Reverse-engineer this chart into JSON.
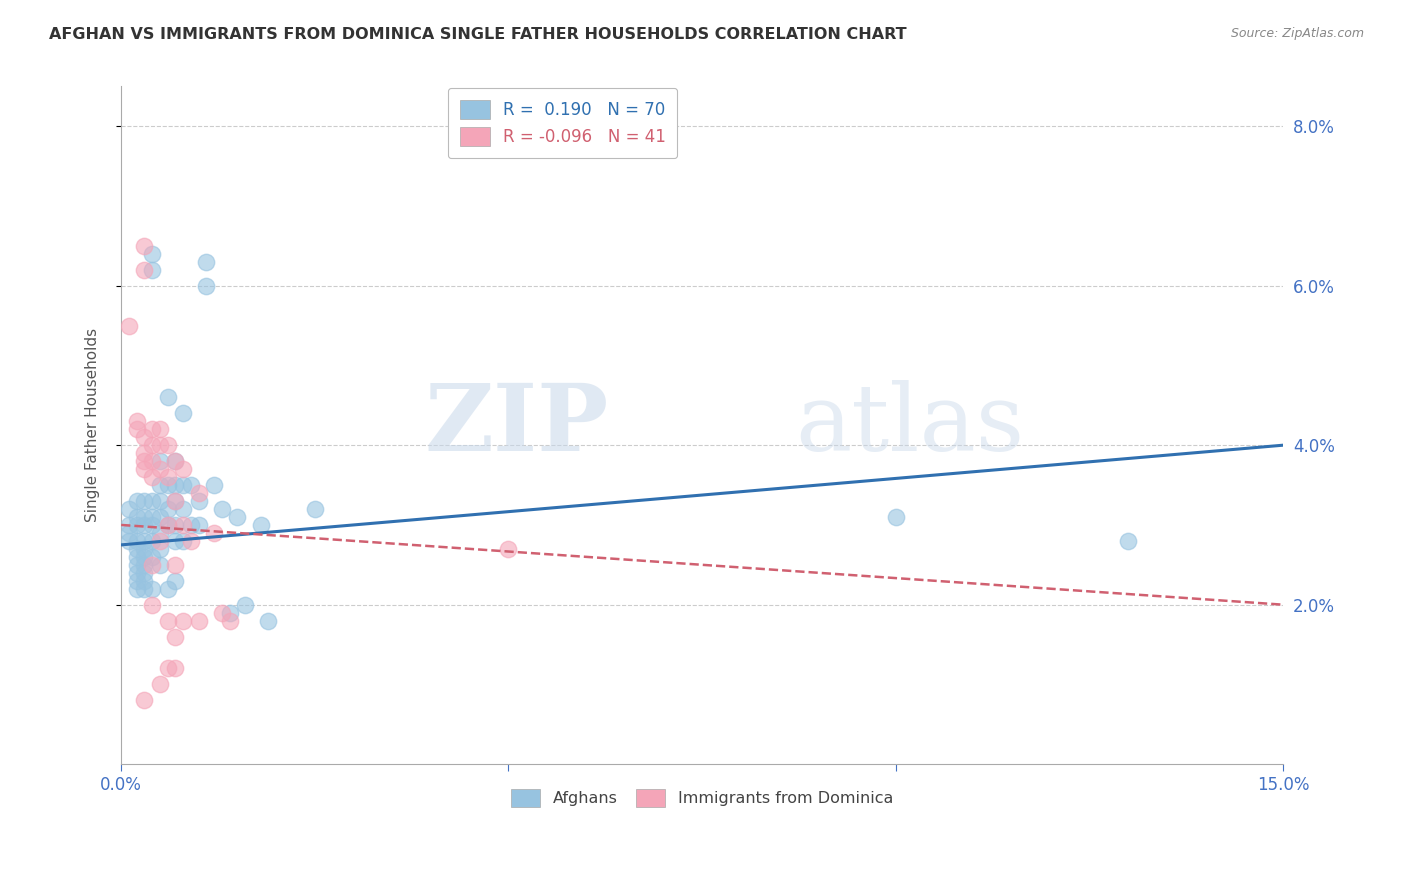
{
  "title": "AFGHAN VS IMMIGRANTS FROM DOMINICA SINGLE FATHER HOUSEHOLDS CORRELATION CHART",
  "source": "Source: ZipAtlas.com",
  "ylabel": "Single Father Households",
  "xlim": [
    0.0,
    0.15
  ],
  "ylim": [
    0.0,
    0.085
  ],
  "yticks": [
    0.02,
    0.04,
    0.06,
    0.08
  ],
  "ytick_labels": [
    "2.0%",
    "4.0%",
    "6.0%",
    "8.0%"
  ],
  "xticks": [
    0.0,
    0.05,
    0.1,
    0.15
  ],
  "xtick_labels": [
    "0.0%",
    "",
    "",
    "15.0%"
  ],
  "watermark_zip": "ZIP",
  "watermark_atlas": "atlas",
  "afghan_color": "#97c3e0",
  "dominica_color": "#f4a5b8",
  "afghan_line_color": "#3070b0",
  "dominica_line_color": "#d06070",
  "background_color": "#ffffff",
  "grid_color": "#cccccc",
  "tick_color": "#4472c4",
  "title_color": "#333333",
  "source_color": "#888888",
  "afghan_R": 0.19,
  "afghan_N": 70,
  "dominica_R": -0.096,
  "dominica_N": 41,
  "afghan_line_x0": 0.0,
  "afghan_line_y0": 0.0275,
  "afghan_line_x1": 0.15,
  "afghan_line_y1": 0.04,
  "dominica_line_x0": 0.0,
  "dominica_line_y0": 0.03,
  "dominica_line_x1": 0.15,
  "dominica_line_y1": 0.02,
  "afghan_points": [
    [
      0.001,
      0.032
    ],
    [
      0.001,
      0.03
    ],
    [
      0.001,
      0.029
    ],
    [
      0.001,
      0.028
    ],
    [
      0.002,
      0.033
    ],
    [
      0.002,
      0.031
    ],
    [
      0.002,
      0.03
    ],
    [
      0.002,
      0.028
    ],
    [
      0.002,
      0.027
    ],
    [
      0.002,
      0.026
    ],
    [
      0.002,
      0.025
    ],
    [
      0.002,
      0.024
    ],
    [
      0.002,
      0.023
    ],
    [
      0.002,
      0.022
    ],
    [
      0.003,
      0.033
    ],
    [
      0.003,
      0.031
    ],
    [
      0.003,
      0.03
    ],
    [
      0.003,
      0.028
    ],
    [
      0.003,
      0.027
    ],
    [
      0.003,
      0.026
    ],
    [
      0.003,
      0.025
    ],
    [
      0.003,
      0.024
    ],
    [
      0.003,
      0.023
    ],
    [
      0.003,
      0.022
    ],
    [
      0.004,
      0.064
    ],
    [
      0.004,
      0.062
    ],
    [
      0.004,
      0.033
    ],
    [
      0.004,
      0.031
    ],
    [
      0.004,
      0.03
    ],
    [
      0.004,
      0.028
    ],
    [
      0.004,
      0.026
    ],
    [
      0.004,
      0.022
    ],
    [
      0.005,
      0.038
    ],
    [
      0.005,
      0.035
    ],
    [
      0.005,
      0.033
    ],
    [
      0.005,
      0.031
    ],
    [
      0.005,
      0.029
    ],
    [
      0.005,
      0.027
    ],
    [
      0.005,
      0.025
    ],
    [
      0.006,
      0.046
    ],
    [
      0.006,
      0.035
    ],
    [
      0.006,
      0.032
    ],
    [
      0.006,
      0.03
    ],
    [
      0.006,
      0.022
    ],
    [
      0.007,
      0.038
    ],
    [
      0.007,
      0.035
    ],
    [
      0.007,
      0.033
    ],
    [
      0.007,
      0.03
    ],
    [
      0.007,
      0.028
    ],
    [
      0.007,
      0.023
    ],
    [
      0.008,
      0.044
    ],
    [
      0.008,
      0.035
    ],
    [
      0.008,
      0.032
    ],
    [
      0.008,
      0.028
    ],
    [
      0.009,
      0.035
    ],
    [
      0.009,
      0.03
    ],
    [
      0.01,
      0.033
    ],
    [
      0.01,
      0.03
    ],
    [
      0.011,
      0.063
    ],
    [
      0.011,
      0.06
    ],
    [
      0.012,
      0.035
    ],
    [
      0.013,
      0.032
    ],
    [
      0.014,
      0.019
    ],
    [
      0.015,
      0.031
    ],
    [
      0.016,
      0.02
    ],
    [
      0.018,
      0.03
    ],
    [
      0.019,
      0.018
    ],
    [
      0.025,
      0.032
    ],
    [
      0.1,
      0.031
    ],
    [
      0.13,
      0.028
    ]
  ],
  "dominica_points": [
    [
      0.001,
      0.055
    ],
    [
      0.002,
      0.043
    ],
    [
      0.002,
      0.042
    ],
    [
      0.003,
      0.065
    ],
    [
      0.003,
      0.062
    ],
    [
      0.003,
      0.041
    ],
    [
      0.003,
      0.039
    ],
    [
      0.003,
      0.038
    ],
    [
      0.003,
      0.037
    ],
    [
      0.004,
      0.042
    ],
    [
      0.004,
      0.04
    ],
    [
      0.004,
      0.038
    ],
    [
      0.004,
      0.036
    ],
    [
      0.004,
      0.025
    ],
    [
      0.004,
      0.02
    ],
    [
      0.005,
      0.042
    ],
    [
      0.005,
      0.04
    ],
    [
      0.005,
      0.037
    ],
    [
      0.005,
      0.028
    ],
    [
      0.006,
      0.04
    ],
    [
      0.006,
      0.036
    ],
    [
      0.006,
      0.03
    ],
    [
      0.006,
      0.018
    ],
    [
      0.007,
      0.038
    ],
    [
      0.007,
      0.033
    ],
    [
      0.007,
      0.025
    ],
    [
      0.007,
      0.012
    ],
    [
      0.008,
      0.037
    ],
    [
      0.008,
      0.03
    ],
    [
      0.008,
      0.018
    ],
    [
      0.009,
      0.028
    ],
    [
      0.01,
      0.034
    ],
    [
      0.01,
      0.018
    ],
    [
      0.012,
      0.029
    ],
    [
      0.013,
      0.019
    ],
    [
      0.014,
      0.018
    ],
    [
      0.005,
      0.01
    ],
    [
      0.006,
      0.012
    ],
    [
      0.05,
      0.027
    ],
    [
      0.003,
      0.008
    ],
    [
      0.007,
      0.016
    ]
  ]
}
